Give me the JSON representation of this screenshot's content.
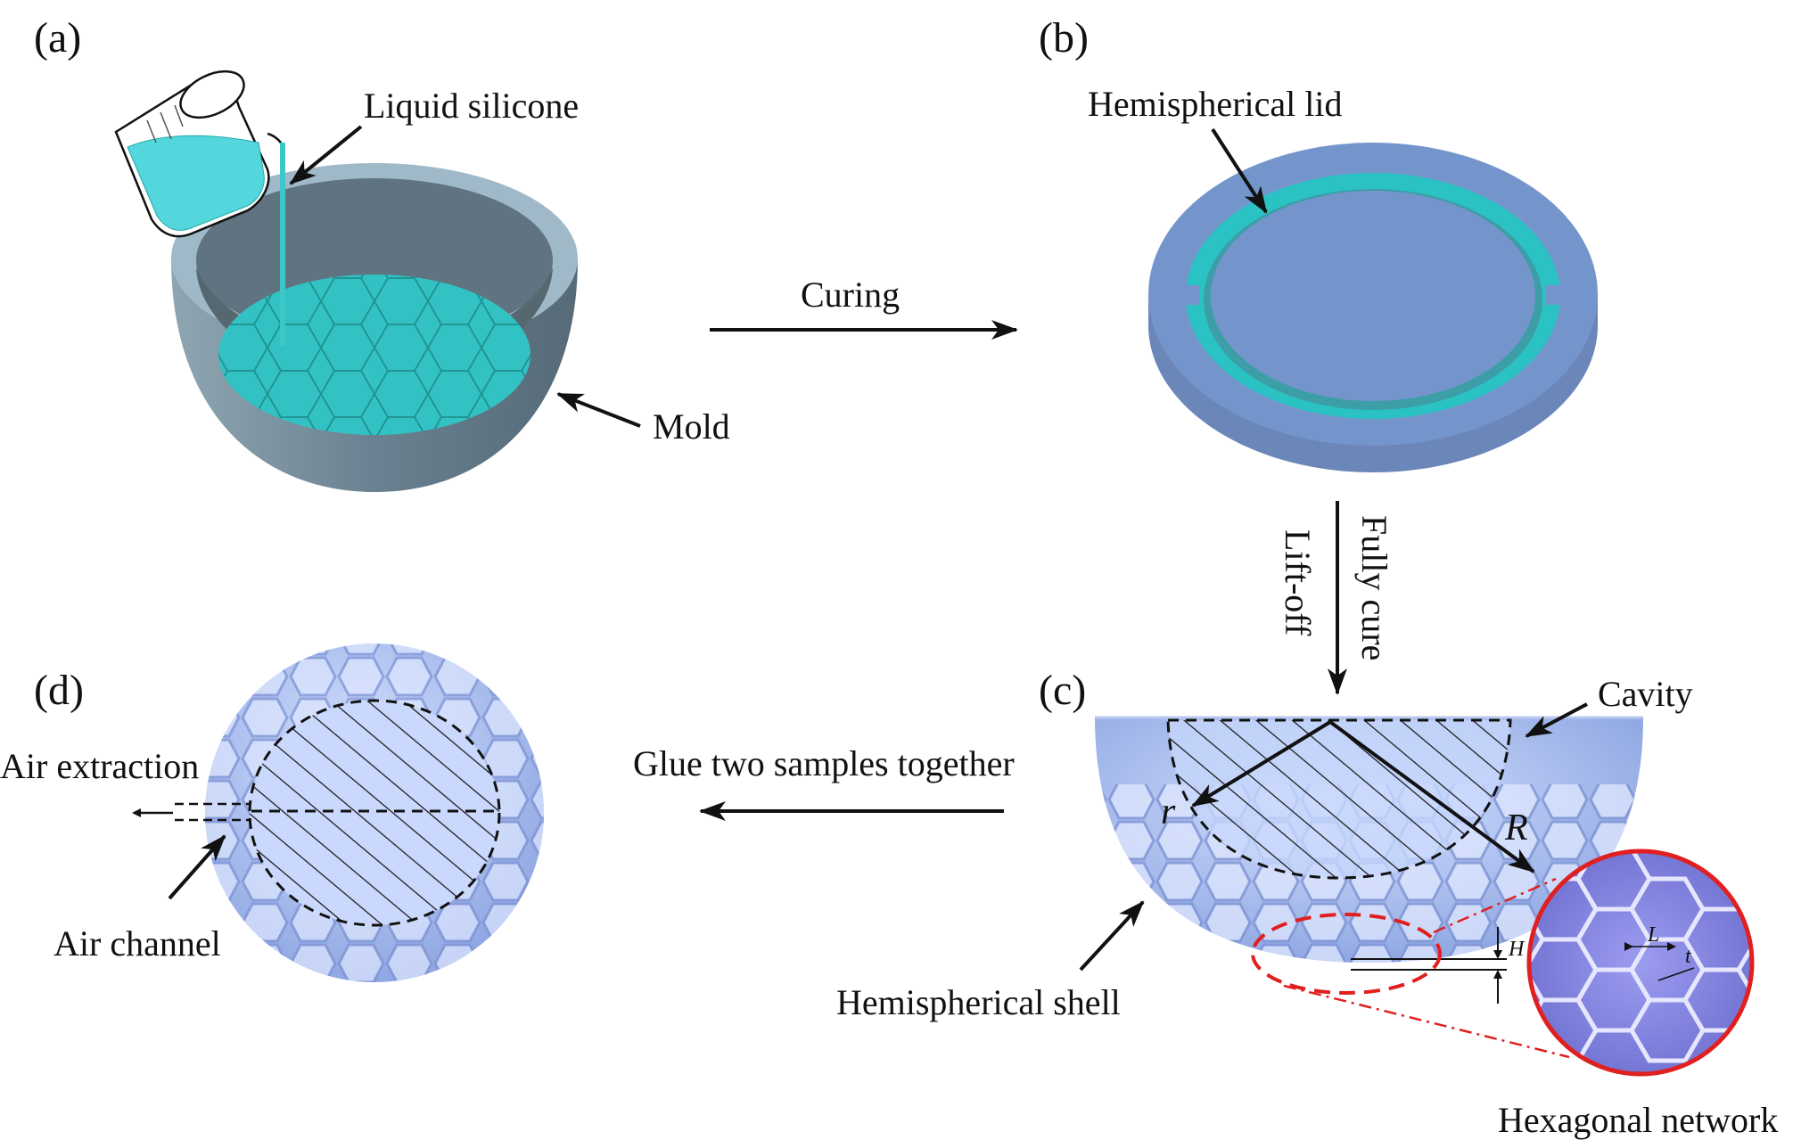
{
  "panels": {
    "a": "(a)",
    "b": "(b)",
    "c": "(c)",
    "d": "(d)"
  },
  "labels": {
    "liquid_silicone": "Liquid silicone",
    "mold": "Mold",
    "curing": "Curing",
    "hemispherical_lid": "Hemispherical lid",
    "fully_cure": "Fully cure",
    "lift_off": "Lift-off",
    "cavity": "Cavity",
    "glue": "Glue two samples together",
    "air_extraction": "Air extraction",
    "air_channel": "Air channel",
    "hemispherical_shell": "Hemispherical shell",
    "hexagonal_network": "Hexagonal network"
  },
  "dimensions": {
    "r": "r",
    "R": "R",
    "H": "H",
    "L": "L",
    "t": "t"
  },
  "colors": {
    "mold": "#7e99a8",
    "silicone": "#3cc8c8",
    "lid": "#6f8fc6",
    "shell": "#9bb3ea",
    "zoom_circle": "#e02020",
    "hex_fill": "#8e8fe8"
  }
}
